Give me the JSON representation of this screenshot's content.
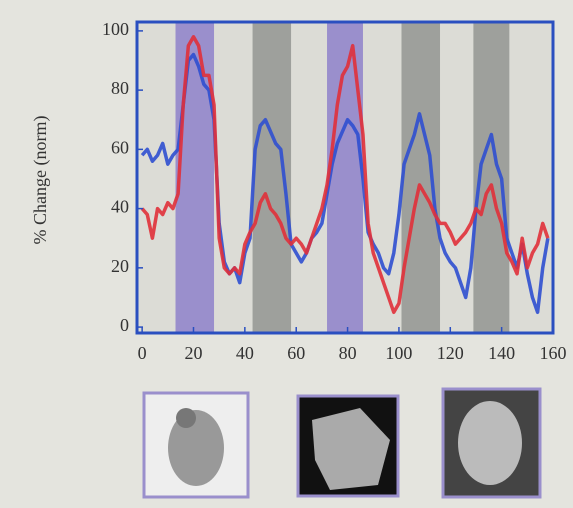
{
  "chart_data": {
    "type": "line",
    "y_label": "% Change (norm)",
    "x": [
      0,
      2,
      4,
      6,
      8,
      10,
      12,
      14,
      16,
      18,
      20,
      22,
      24,
      26,
      28,
      30,
      32,
      34,
      36,
      38,
      40,
      42,
      44,
      46,
      48,
      50,
      52,
      54,
      56,
      58,
      60,
      62,
      64,
      66,
      68,
      70,
      72,
      74,
      76,
      78,
      80,
      82,
      84,
      86,
      88,
      90,
      92,
      94,
      96,
      98,
      100,
      102,
      104,
      106,
      108,
      110,
      112,
      114,
      116,
      118,
      120,
      122,
      124,
      126,
      128,
      130,
      132,
      134,
      136,
      138,
      140,
      142,
      144,
      146,
      148,
      150,
      152,
      154,
      156,
      158
    ],
    "series": [
      {
        "color": "#2f4fd0",
        "values": [
          58,
          60,
          56,
          58,
          62,
          55,
          58,
          60,
          75,
          90,
          92,
          88,
          82,
          80,
          70,
          35,
          22,
          18,
          20,
          15,
          25,
          30,
          60,
          68,
          70,
          66,
          62,
          60,
          45,
          28,
          25,
          22,
          25,
          30,
          32,
          35,
          45,
          55,
          62,
          66,
          70,
          68,
          65,
          50,
          32,
          28,
          25,
          20,
          18,
          25,
          38,
          55,
          60,
          65,
          72,
          65,
          58,
          40,
          30,
          25,
          22,
          20,
          15,
          10,
          20,
          40,
          55,
          60,
          65,
          55,
          50,
          30,
          25,
          20,
          28,
          18,
          10,
          5,
          20,
          30
        ]
      },
      {
        "color": "#e0303a",
        "values": [
          40,
          38,
          30,
          40,
          38,
          42,
          40,
          45,
          75,
          95,
          98,
          95,
          85,
          85,
          75,
          30,
          20,
          18,
          20,
          18,
          28,
          32,
          35,
          42,
          45,
          40,
          38,
          35,
          30,
          28,
          30,
          28,
          25,
          30,
          35,
          40,
          48,
          60,
          75,
          85,
          88,
          95,
          80,
          65,
          35,
          25,
          20,
          15,
          10,
          5,
          8,
          20,
          30,
          40,
          48,
          45,
          42,
          38,
          35,
          35,
          32,
          28,
          30,
          32,
          35,
          40,
          38,
          45,
          48,
          40,
          35,
          25,
          22,
          18,
          30,
          20,
          25,
          28,
          35,
          30
        ]
      }
    ],
    "blocks": [
      {
        "start": 13,
        "end": 28,
        "color": "#9a8fcc"
      },
      {
        "start": 43,
        "end": 58,
        "color": "#9ea09c"
      },
      {
        "start": 72,
        "end": 86,
        "color": "#9a8fcc"
      },
      {
        "start": 101,
        "end": 116,
        "color": "#9ea09c"
      },
      {
        "start": 129,
        "end": 143,
        "color": "#9ea09c"
      }
    ],
    "xlim": [
      -2,
      160
    ],
    "ylim": [
      -2,
      103
    ],
    "xticks": [
      0,
      20,
      40,
      60,
      80,
      100,
      120,
      140,
      160
    ],
    "yticks": [
      0,
      20,
      40,
      60,
      80,
      100
    ]
  }
}
